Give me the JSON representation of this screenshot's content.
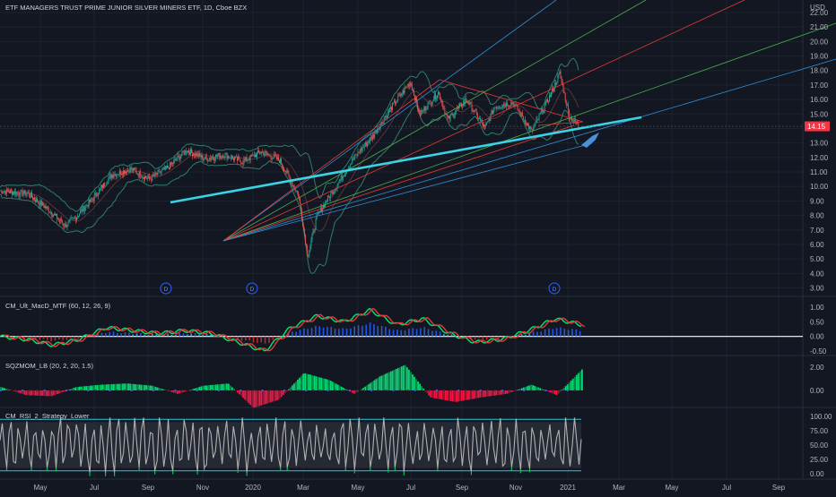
{
  "header": {
    "title": "ETF MANAGERS TRUST PRIME JUNIOR SILVER MINERS ETF, 1D, Cboe BZX",
    "currency": "USD"
  },
  "colors": {
    "background": "#131722",
    "candle_up": "#26a69a",
    "candle_down": "#ef5350",
    "trendline": "#3ad3e6",
    "price_tag": "#f23645",
    "fan_blue": "#2f8fd9",
    "fan_green": "#4caf50",
    "fan_red": "#e53935",
    "bollinger": "#2e7d6a",
    "macd_fast": "#e53935",
    "macd_slow": "#00e676",
    "sqz_pos": "#00e676",
    "sqz_neg": "#ff1744",
    "rsi_line": "#b0b0b0",
    "rsi_band": "#26c6da"
  },
  "chart_data": [
    {
      "type": "candlestick",
      "title": "ETF MANAGERS TRUST PRIME JUNIOR SILVER MINERS ETF, 1D, Cboe BZX",
      "ylabel": "USD",
      "ylim": [
        2.5,
        22.5
      ],
      "y_ticks": [
        "22.00",
        "21.00",
        "20.00",
        "19.00",
        "18.00",
        "17.00",
        "16.00",
        "15.00",
        "14.00",
        "13.00",
        "12.00",
        "11.00",
        "10.00",
        "9.00",
        "8.00",
        "7.00",
        "6.00",
        "5.00",
        "4.00",
        "3.00"
      ],
      "last_price": "14.15",
      "dividend_markers": [
        "D",
        "D",
        "D"
      ],
      "price_path": [
        [
          0,
          9.7
        ],
        [
          3,
          9.5
        ],
        [
          5,
          8.5
        ],
        [
          7,
          7.3
        ],
        [
          8,
          7.8
        ],
        [
          10,
          9.2
        ],
        [
          12,
          10.8
        ],
        [
          14,
          11.2
        ],
        [
          16,
          10.5
        ],
        [
          18,
          11.3
        ],
        [
          20,
          12.5
        ],
        [
          22,
          11.9
        ],
        [
          24,
          12.2
        ],
        [
          26,
          11.7
        ],
        [
          28,
          12.4
        ],
        [
          30,
          11.8
        ],
        [
          32,
          9.4
        ],
        [
          33,
          5.2
        ],
        [
          34,
          8.0
        ],
        [
          36,
          10.0
        ],
        [
          38,
          12.0
        ],
        [
          40,
          13.5
        ],
        [
          42,
          15.5
        ],
        [
          44,
          17.2
        ],
        [
          45,
          15.0
        ],
        [
          47,
          16.5
        ],
        [
          48,
          14.6
        ],
        [
          50,
          16.0
        ],
        [
          52,
          14.0
        ],
        [
          53,
          15.5
        ],
        [
          55,
          15.8
        ],
        [
          57,
          13.8
        ],
        [
          59,
          16.3
        ],
        [
          60,
          17.8
        ],
        [
          61,
          14.9
        ],
        [
          62,
          14.2
        ]
      ],
      "months": [
        "May",
        "Jul",
        "Sep",
        "Nov",
        "2020",
        "Mar",
        "May",
        "Jul",
        "Sep",
        "Nov",
        "2021",
        "Mar",
        "May",
        "Jul",
        "Sep"
      ]
    },
    {
      "type": "line",
      "title": "CM_Ult_MacD_MTF (60, 12, 26, 9)",
      "y_ticks": [
        "1.00",
        "0.50",
        "0.00",
        "-0.50"
      ],
      "ylim": [
        -0.6,
        1.1
      ],
      "series": [
        {
          "values": [
            0.0,
            -0.1,
            -0.3,
            -0.1,
            0.3,
            0.2,
            0.1,
            0.2,
            0.1,
            -0.2,
            -0.5,
            0.3,
            0.7,
            0.5,
            0.9,
            0.4,
            0.6,
            0.1,
            -0.2,
            -0.1,
            0.2,
            0.6,
            0.4
          ]
        }
      ]
    },
    {
      "type": "bar",
      "title": "SQZMOM_LB (20, 2, 20, 1.5)",
      "y_ticks": [
        "2.00",
        "0.00"
      ],
      "ylim": [
        -1.6,
        2.6
      ],
      "values": [
        0.3,
        -0.4,
        -0.5,
        0.3,
        0.5,
        0.6,
        0.4,
        -0.3,
        0.4,
        0.6,
        -1.5,
        -0.8,
        1.5,
        0.9,
        -0.3,
        1.2,
        2.2,
        -0.6,
        -1.0,
        -0.6,
        -0.3,
        0.5,
        -0.4,
        1.8
      ]
    },
    {
      "type": "line",
      "title": "CM_RSI_2_Strategy_Lower",
      "y_ticks": [
        "100.00",
        "75.00",
        "50.00",
        "25.00",
        "0.00"
      ],
      "ylim": [
        -5,
        105
      ]
    }
  ],
  "x_axis": {
    "labels": [
      "May",
      "Jul",
      "Sep",
      "Nov",
      "2020",
      "Mar",
      "May",
      "Jul",
      "Sep",
      "Nov",
      "2021",
      "Mar",
      "May",
      "Jul",
      "Sep"
    ]
  }
}
